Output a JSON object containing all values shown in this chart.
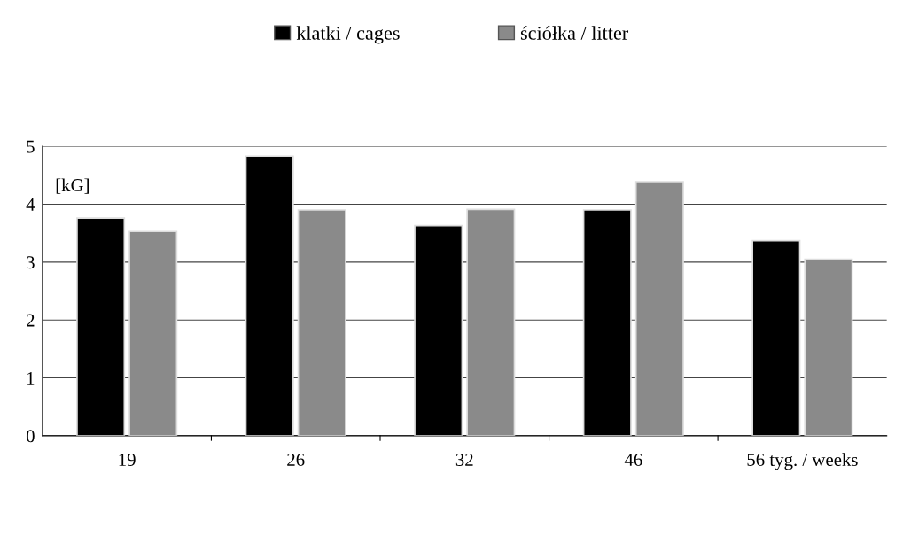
{
  "chart_data": {
    "type": "bar",
    "categories": [
      "19",
      "26",
      "32",
      "46",
      "56 tyg. / weeks"
    ],
    "series": [
      {
        "name": "klatki / cages",
        "color": "#000000",
        "values": [
          3.76,
          4.83,
          3.63,
          3.9,
          3.37
        ]
      },
      {
        "name": "ściółka / litter",
        "color": "#8a8a8a",
        "values": [
          3.53,
          3.9,
          3.91,
          4.39,
          3.05
        ]
      }
    ],
    "ylim": [
      0,
      5
    ],
    "yticks": [
      0,
      1,
      2,
      3,
      4,
      5
    ],
    "grid": "y",
    "legend": "top",
    "annotations": [
      "[kG]"
    ]
  }
}
